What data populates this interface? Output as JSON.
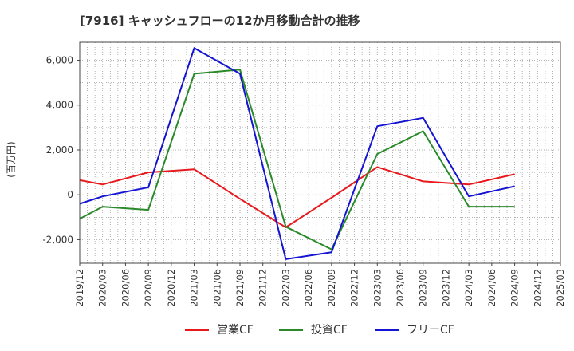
{
  "chart_data": {
    "type": "line",
    "title": "[7916]  キャッシュフローの12か月移動合計の推移",
    "xlabel": "",
    "ylabel": "(百万円)",
    "ylim": [
      -3050,
      6800
    ],
    "xlim": [
      "2019/12",
      "2025/03"
    ],
    "yticks": [
      -2000,
      0,
      2000,
      4000,
      6000
    ],
    "ytick_labels": [
      "-2,000",
      "0",
      "2,000",
      "4,000",
      "6,000"
    ],
    "xtick_labels": [
      "2019/12",
      "2020/03",
      "2020/06",
      "2020/09",
      "2020/12",
      "2021/03",
      "2021/06",
      "2021/09",
      "2021/12",
      "2022/03",
      "2022/06",
      "2022/09",
      "2022/12",
      "2023/03",
      "2023/06",
      "2023/09",
      "2023/12",
      "2024/03",
      "2024/06",
      "2024/09",
      "2024/12",
      "2025/03"
    ],
    "grid": true,
    "legend_position": "bottom-center",
    "x": [
      "2019/12",
      "2020/03",
      "2020/09",
      "2021/03",
      "2021/09",
      "2022/03",
      "2022/09",
      "2023/03",
      "2023/09",
      "2024/03",
      "2024/09"
    ],
    "series": [
      {
        "name": "営業CF",
        "color": "#e8191c",
        "values": [
          650,
          460,
          1000,
          1140,
          -180,
          -1450,
          -130,
          1240,
          600,
          460,
          920
        ]
      },
      {
        "name": "投資CF",
        "color": "#2a8a2a",
        "values": [
          -1070,
          -530,
          -670,
          5400,
          5580,
          -1420,
          -2430,
          1820,
          2840,
          -530,
          -530
        ]
      },
      {
        "name": "フリーCF",
        "color": "#1414d2",
        "values": [
          -400,
          -70,
          330,
          6540,
          5400,
          -2870,
          -2560,
          3060,
          3430,
          -70,
          380
        ]
      }
    ]
  }
}
